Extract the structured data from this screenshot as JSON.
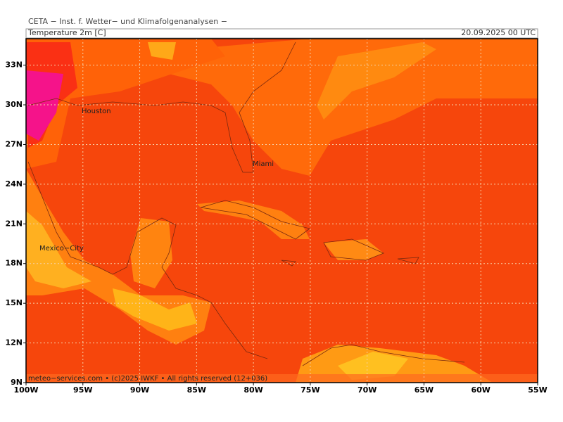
{
  "header": {
    "title": "CETA − Inst. f. Wetter− und Klimafolgenanalysen −",
    "field": "Temperature 2m [C]",
    "valid_time": "20.09.2025 00 UTC"
  },
  "map": {
    "lon_range": [
      -100,
      -55
    ],
    "lat_range": [
      9,
      35
    ],
    "lon_ticks": [
      {
        "value": -100,
        "label": "100W"
      },
      {
        "value": -95,
        "label": "95W"
      },
      {
        "value": -90,
        "label": "90W"
      },
      {
        "value": -85,
        "label": "85W"
      },
      {
        "value": -80,
        "label": "80W"
      },
      {
        "value": -75,
        "label": "75W"
      },
      {
        "value": -70,
        "label": "70W"
      },
      {
        "value": -65,
        "label": "65W"
      },
      {
        "value": -60,
        "label": "60W"
      },
      {
        "value": -55,
        "label": "55W"
      }
    ],
    "lat_ticks": [
      {
        "value": 9,
        "label": "9N"
      },
      {
        "value": 12,
        "label": "12N"
      },
      {
        "value": 15,
        "label": "15N"
      },
      {
        "value": 18,
        "label": "18N"
      },
      {
        "value": 21,
        "label": "21N"
      },
      {
        "value": 24,
        "label": "24N"
      },
      {
        "value": 27,
        "label": "27N"
      },
      {
        "value": 30,
        "label": "30N"
      },
      {
        "value": 33,
        "label": "33N"
      }
    ],
    "cities": [
      "Houston",
      "Miami",
      "Mexico−City"
    ]
  },
  "footer": "meteo−services.com • (c)2025 IWKF • All rights reserved (12+036)"
}
